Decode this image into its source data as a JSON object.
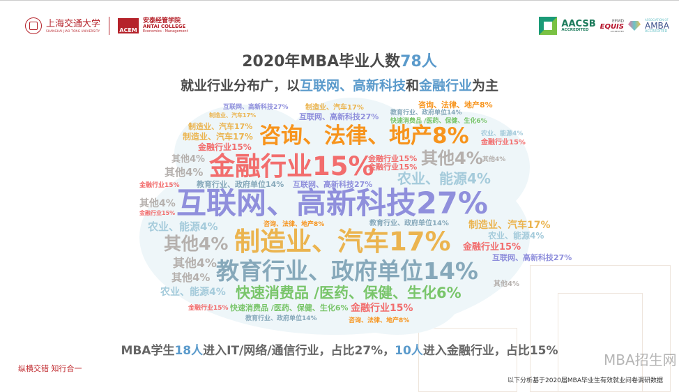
{
  "header": {
    "sjtu_logo": {
      "name_cn": "上海交通大学",
      "name_en": "SHANGHAI JIAO TONG UNIVERSITY"
    },
    "antai_logo": {
      "mark": "ACEM",
      "name_cn": "安泰经管学院",
      "name_en": "ANTAI COLLEGE",
      "sub": "Economics · Management"
    },
    "accreditations": {
      "aacsb": {
        "name": "AACSB",
        "sub": "ACCREDITED"
      },
      "equis": {
        "top": "EFMD",
        "name": "EQUIS",
        "sub": "ACCREDITED"
      },
      "amba": {
        "top": "ASSOCIATION OF",
        "name": "AMBA",
        "sub": "ACCREDITED"
      }
    }
  },
  "title": {
    "prefix": "2020年MBA毕业人数",
    "highlight": "78人"
  },
  "subtitle": {
    "prefix": "就业行业分布广，以",
    "highlight1": "互联网、高新科技",
    "mid": "和",
    "highlight2": "金融行业",
    "suffix": "为主"
  },
  "wordcloud": {
    "colors": {
      "consult": "#f7941d",
      "finance": "#f26d6d",
      "internet": "#8f8fdc",
      "manufacture": "#ebb44f",
      "education": "#86a8ba",
      "fmcg": "#79c56a",
      "other": "#b5b0ad",
      "agri": "#a5cbdb"
    },
    "labels": {
      "consult": "咨询、法律、地产8%",
      "finance": "金融行业15%",
      "internet": "互联网、高新科技27%",
      "manufacture": "制造业、汽车17%",
      "education": "教育行业、政府单位14%",
      "fmcg": "快速消费品 /医药、保健、生化6%",
      "other": "其他4%",
      "agri": "农业、能源4%"
    }
  },
  "bottom": {
    "p1": "MBA学生",
    "h1": "18人",
    "p2": "进入IT/网络/通信行业，占比27%，",
    "h2": "10人",
    "p3": "进入金融行业，占比15%"
  },
  "motto": "纵横交错 知行合一",
  "footnote": "以下分析基于2020届MBA毕业生有效就业问卷调研数据",
  "watermark": "MBA招生网"
}
